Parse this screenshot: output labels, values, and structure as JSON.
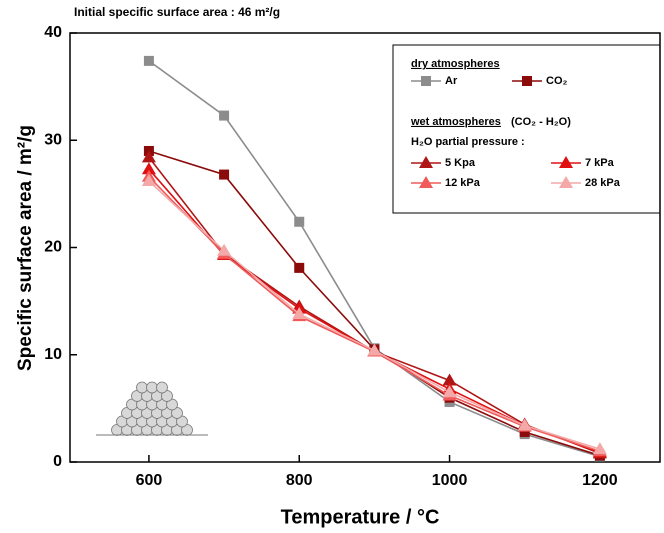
{
  "chart_data": {
    "type": "line",
    "title": "Initial specific surface area : 46 m²/g",
    "x_label": "Temperature / °C",
    "y_label": "Specific surface area / m²/g",
    "x": [
      600,
      700,
      800,
      900,
      1000,
      1100,
      1200
    ],
    "xlim": [
      495,
      1280
    ],
    "xticks": [
      600,
      800,
      1000,
      1200
    ],
    "ylim": [
      0,
      40
    ],
    "yticks": [
      0,
      10,
      20,
      30,
      40
    ],
    "legend_position": "upper right",
    "legend_groups": [
      "dry atmospheres",
      "wet atmospheres"
    ],
    "wet_group_note": "(CO₂ - H₂O)",
    "pressure_heading": "H₂O partial pressure :",
    "series": [
      {
        "name": "Ar",
        "color": "#8c8c8c",
        "marker": "square",
        "group": 0,
        "values": [
          37.4,
          32.3,
          22.4,
          10.6,
          5.6,
          2.6,
          0.5
        ]
      },
      {
        "name": "CO₂",
        "color": "#8b0a0a",
        "marker": "square",
        "group": 0,
        "values": [
          29.0,
          26.8,
          18.1,
          10.5,
          6.0,
          2.8,
          0.6
        ]
      },
      {
        "name": "5 Kpa",
        "color": "#b01515",
        "marker": "triangle",
        "group": 1,
        "values": [
          28.4,
          19.4,
          14.5,
          10.3,
          7.6,
          3.5,
          0.8
        ]
      },
      {
        "name": "7 kPa",
        "color": "#e01010",
        "marker": "triangle",
        "group": 1,
        "values": [
          27.3,
          19.3,
          14.3,
          10.3,
          6.8,
          3.4,
          0.9
        ]
      },
      {
        "name": "12 kPa",
        "color": "#f05a5a",
        "marker": "triangle",
        "group": 1,
        "values": [
          26.6,
          19.4,
          13.6,
          10.3,
          6.2,
          3.3,
          1.0
        ]
      },
      {
        "name": "28 kPa",
        "color": "#f4a8a8",
        "marker": "triangle",
        "group": 1,
        "values": [
          26.2,
          19.7,
          13.8,
          10.4,
          6.5,
          3.4,
          1.2
        ]
      }
    ]
  }
}
